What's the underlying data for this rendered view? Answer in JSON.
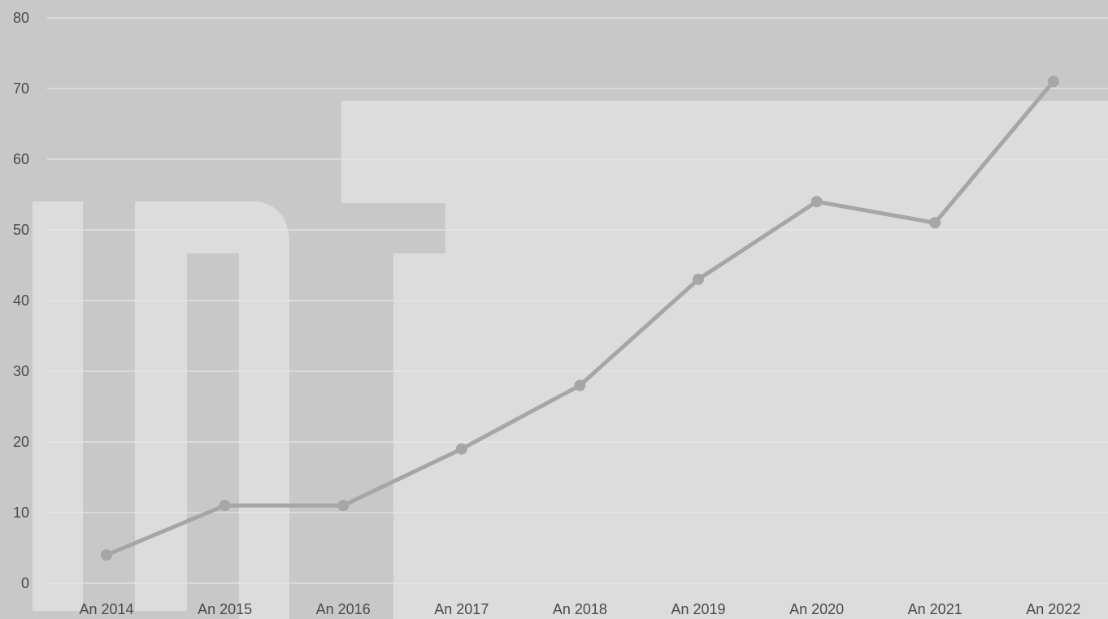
{
  "chart_data": {
    "type": "line",
    "categories": [
      "An 2014",
      "An 2015",
      "An 2016",
      "An 2017",
      "An 2018",
      "An 2019",
      "An 2020",
      "An 2021",
      "An 2022"
    ],
    "series": [
      {
        "values": [
          4,
          11,
          11,
          19,
          28,
          43,
          54,
          51,
          71
        ]
      }
    ],
    "ylim": [
      0,
      80
    ],
    "yticks": [
      0,
      10,
      20,
      30,
      40,
      50,
      60,
      70,
      80
    ],
    "grid": true,
    "legend": "none",
    "colors": {
      "line": "#a6a6a6",
      "marker": "#a6a6a6",
      "grid": "#e6e6e6",
      "background_dark": "#c8c8c8",
      "background_light": "#dcdcdc"
    }
  }
}
